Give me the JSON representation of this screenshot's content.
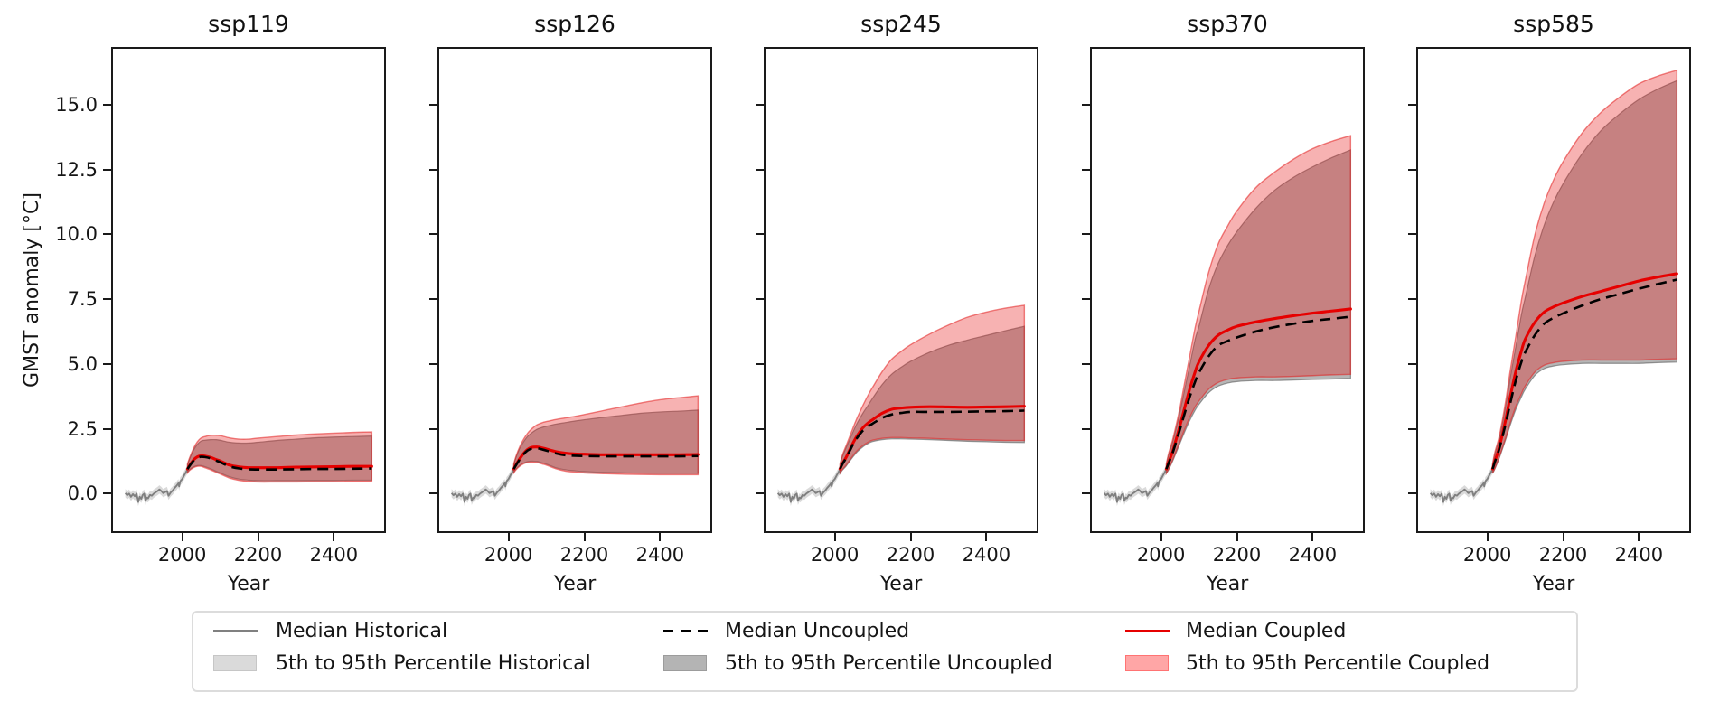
{
  "figure": {
    "ylabel": "GMST anomaly [°C]",
    "xlabel": "Year",
    "ytick_labels": [
      "0.0",
      "2.5",
      "5.0",
      "7.5",
      "10.0",
      "12.5",
      "15.0"
    ],
    "xtick_labels": [
      "2000",
      "2200",
      "2400"
    ]
  },
  "legend": {
    "items": [
      {
        "label": "Median Historical",
        "type": "line",
        "color": "#808080"
      },
      {
        "label": "5th to 95th Percentile Historical",
        "type": "patch",
        "fill": "#dadada",
        "edge": "#c6c6c6"
      },
      {
        "label": "Median Uncoupled",
        "type": "dashed-line",
        "color": "#000000"
      },
      {
        "label": "5th to 95th Percentile Uncoupled",
        "type": "patch",
        "fill": "#b4b4b4",
        "edge": "#9c9c9c"
      },
      {
        "label": "Median Coupled",
        "type": "line",
        "color": "#e60000"
      },
      {
        "label": "5th to 95th Percentile Coupled",
        "type": "patch",
        "fill": "#ffa6a6",
        "edge": "#ff7373"
      }
    ]
  },
  "chart_data": {
    "type": "line",
    "title": "",
    "xlabel": "Year",
    "ylabel": "GMST anomaly [°C]",
    "xlim": [
      1817.5,
      2532.5
    ],
    "ylim": [
      -1.45,
      17.15
    ],
    "xticks": [
      2000,
      2200,
      2400
    ],
    "yticks": [
      0,
      2.5,
      5,
      7.5,
      10,
      12.5,
      15
    ],
    "grid": false,
    "legend_position": "bottom",
    "colors": {
      "coupled_line": "#e60000",
      "coupled_fill": "rgba(230,20,20,0.33)",
      "coupled_edge": "rgba(225,30,30,0.55)",
      "uncoupled_line": "#000000",
      "uncoupled_fill": "rgba(110,110,110,0.50)",
      "uncoupled_edge": "rgba(90,90,90,0.60)",
      "historical_line": "#7f7f7f",
      "historical_fill": "rgba(150,150,150,0.35)"
    },
    "historical": {
      "years": [
        1850,
        1855,
        1860,
        1865,
        1870,
        1875,
        1880,
        1884,
        1888,
        1892,
        1896,
        1900,
        1903,
        1907,
        1910,
        1915,
        1920,
        1925,
        1930,
        1935,
        1940,
        1945,
        1950,
        1955,
        1960,
        1964,
        1970,
        1975,
        1980,
        1985,
        1990,
        1992,
        1995,
        2000,
        2005,
        2010,
        2014
      ],
      "median": [
        0.02,
        -0.06,
        0.0,
        -0.12,
        -0.02,
        -0.1,
        0.0,
        -0.32,
        -0.12,
        -0.2,
        -0.05,
        0.0,
        -0.28,
        -0.15,
        -0.18,
        -0.05,
        -0.08,
        0.0,
        0.05,
        0.1,
        0.16,
        0.1,
        0.02,
        0.06,
        0.1,
        -0.08,
        0.05,
        0.12,
        0.22,
        0.3,
        0.4,
        0.28,
        0.48,
        0.56,
        0.7,
        0.83,
        0.94
      ],
      "band_halfwidth": 0.16
    },
    "projection_years": [
      2014,
      2020,
      2030,
      2040,
      2050,
      2060,
      2075,
      2090,
      2100,
      2125,
      2150,
      2175,
      2200,
      2250,
      2300,
      2350,
      2400,
      2450,
      2500
    ],
    "panels": [
      {
        "title": "ssp119",
        "median_coupled": [
          0.95,
          1.1,
          1.3,
          1.42,
          1.46,
          1.45,
          1.4,
          1.31,
          1.26,
          1.1,
          1.03,
          1.0,
          1.0,
          1.0,
          1.02,
          1.03,
          1.04,
          1.05,
          1.05
        ],
        "median_uncoupled": [
          0.95,
          1.08,
          1.27,
          1.38,
          1.42,
          1.41,
          1.36,
          1.27,
          1.21,
          1.05,
          0.97,
          0.94,
          0.93,
          0.93,
          0.94,
          0.95,
          0.95,
          0.96,
          0.97
        ],
        "coupled_lower": [
          0.8,
          0.9,
          1.0,
          1.05,
          1.05,
          1.0,
          0.92,
          0.82,
          0.76,
          0.6,
          0.51,
          0.47,
          0.45,
          0.45,
          0.45,
          0.46,
          0.46,
          0.47,
          0.47
        ],
        "coupled_upper": [
          1.15,
          1.4,
          1.75,
          2.0,
          2.15,
          2.2,
          2.25,
          2.25,
          2.24,
          2.15,
          2.1,
          2.1,
          2.14,
          2.2,
          2.26,
          2.3,
          2.33,
          2.36,
          2.38
        ],
        "uncoupled_lower": [
          0.83,
          0.93,
          1.03,
          1.08,
          1.08,
          1.04,
          0.96,
          0.86,
          0.8,
          0.65,
          0.56,
          0.52,
          0.5,
          0.5,
          0.5,
          0.51,
          0.51,
          0.52,
          0.52
        ],
        "uncoupled_upper": [
          1.12,
          1.35,
          1.68,
          1.9,
          2.03,
          2.06,
          2.08,
          2.08,
          2.06,
          1.98,
          1.95,
          1.95,
          1.98,
          2.05,
          2.1,
          2.15,
          2.18,
          2.2,
          2.22
        ]
      },
      {
        "title": "ssp126",
        "median_coupled": [
          0.95,
          1.12,
          1.35,
          1.55,
          1.7,
          1.78,
          1.8,
          1.76,
          1.72,
          1.62,
          1.56,
          1.53,
          1.52,
          1.5,
          1.5,
          1.5,
          1.5,
          1.5,
          1.51
        ],
        "median_uncoupled": [
          0.95,
          1.1,
          1.32,
          1.52,
          1.66,
          1.73,
          1.75,
          1.7,
          1.66,
          1.55,
          1.48,
          1.46,
          1.45,
          1.44,
          1.44,
          1.44,
          1.44,
          1.44,
          1.45
        ],
        "coupled_lower": [
          0.8,
          0.92,
          1.06,
          1.15,
          1.2,
          1.21,
          1.2,
          1.14,
          1.1,
          0.96,
          0.87,
          0.83,
          0.8,
          0.77,
          0.75,
          0.74,
          0.73,
          0.73,
          0.73
        ],
        "coupled_upper": [
          1.15,
          1.45,
          1.82,
          2.1,
          2.32,
          2.48,
          2.65,
          2.74,
          2.78,
          2.86,
          2.92,
          2.98,
          3.05,
          3.2,
          3.35,
          3.5,
          3.62,
          3.7,
          3.77
        ],
        "uncoupled_lower": [
          0.83,
          0.95,
          1.09,
          1.18,
          1.23,
          1.25,
          1.24,
          1.18,
          1.14,
          1.0,
          0.92,
          0.88,
          0.85,
          0.82,
          0.8,
          0.79,
          0.78,
          0.78,
          0.78
        ],
        "uncoupled_upper": [
          1.12,
          1.4,
          1.75,
          2.0,
          2.2,
          2.33,
          2.48,
          2.56,
          2.6,
          2.68,
          2.74,
          2.8,
          2.85,
          2.94,
          3.02,
          3.1,
          3.15,
          3.18,
          3.22
        ]
      },
      {
        "title": "ssp245",
        "median_coupled": [
          0.95,
          1.15,
          1.4,
          1.7,
          2.0,
          2.25,
          2.55,
          2.75,
          2.85,
          3.1,
          3.25,
          3.3,
          3.33,
          3.35,
          3.34,
          3.33,
          3.34,
          3.35,
          3.37
        ],
        "median_uncoupled": [
          0.95,
          1.13,
          1.37,
          1.66,
          1.94,
          2.17,
          2.44,
          2.61,
          2.7,
          2.92,
          3.05,
          3.11,
          3.15,
          3.15,
          3.15,
          3.16,
          3.17,
          3.18,
          3.2
        ],
        "coupled_lower": [
          0.8,
          0.93,
          1.1,
          1.3,
          1.5,
          1.67,
          1.86,
          2.0,
          2.06,
          2.13,
          2.16,
          2.16,
          2.15,
          2.13,
          2.1,
          2.08,
          2.06,
          2.05,
          2.05
        ],
        "coupled_upper": [
          1.15,
          1.48,
          1.85,
          2.22,
          2.6,
          2.95,
          3.42,
          3.85,
          4.1,
          4.7,
          5.18,
          5.48,
          5.74,
          6.15,
          6.5,
          6.8,
          7.0,
          7.15,
          7.26
        ],
        "uncoupled_lower": [
          0.78,
          0.9,
          1.06,
          1.26,
          1.45,
          1.62,
          1.81,
          1.95,
          2.01,
          2.08,
          2.11,
          2.11,
          2.1,
          2.08,
          2.05,
          2.02,
          2.0,
          1.98,
          1.97
        ],
        "uncoupled_upper": [
          1.12,
          1.42,
          1.77,
          2.1,
          2.44,
          2.74,
          3.12,
          3.45,
          3.68,
          4.2,
          4.6,
          4.87,
          5.1,
          5.45,
          5.72,
          5.92,
          6.1,
          6.28,
          6.45
        ]
      },
      {
        "title": "ssp370",
        "median_coupled": [
          0.95,
          1.2,
          1.6,
          2.1,
          2.62,
          3.18,
          4.0,
          4.7,
          5.08,
          5.7,
          6.1,
          6.3,
          6.45,
          6.62,
          6.75,
          6.86,
          6.96,
          7.04,
          7.12
        ],
        "median_uncoupled": [
          0.95,
          1.17,
          1.54,
          2.0,
          2.48,
          2.98,
          3.7,
          4.32,
          4.66,
          5.28,
          5.7,
          5.88,
          6.02,
          6.25,
          6.42,
          6.55,
          6.66,
          6.74,
          6.82
        ],
        "coupled_lower": [
          0.8,
          0.95,
          1.28,
          1.65,
          2.02,
          2.4,
          2.92,
          3.35,
          3.57,
          4.02,
          4.28,
          4.4,
          4.46,
          4.5,
          4.5,
          4.52,
          4.55,
          4.58,
          4.6
        ],
        "coupled_upper": [
          1.15,
          1.55,
          2.05,
          2.65,
          3.32,
          4.1,
          5.25,
          6.4,
          7.02,
          8.5,
          9.6,
          10.3,
          10.9,
          11.8,
          12.4,
          12.9,
          13.3,
          13.58,
          13.8
        ],
        "uncoupled_lower": [
          0.78,
          0.92,
          1.23,
          1.58,
          1.94,
          2.3,
          2.8,
          3.22,
          3.44,
          3.88,
          4.14,
          4.26,
          4.32,
          4.36,
          4.36,
          4.38,
          4.4,
          4.42,
          4.44
        ],
        "uncoupled_upper": [
          1.12,
          1.48,
          1.95,
          2.52,
          3.15,
          3.85,
          4.9,
          5.95,
          6.45,
          7.85,
          8.85,
          9.55,
          10.1,
          11.0,
          11.7,
          12.2,
          12.6,
          12.95,
          13.25
        ]
      },
      {
        "title": "ssp585",
        "median_coupled": [
          0.95,
          1.25,
          1.7,
          2.3,
          2.95,
          3.7,
          4.7,
          5.5,
          5.95,
          6.6,
          7.0,
          7.2,
          7.35,
          7.6,
          7.8,
          8.0,
          8.2,
          8.35,
          8.48
        ],
        "median_uncoupled": [
          0.95,
          1.22,
          1.64,
          2.2,
          2.78,
          3.45,
          4.35,
          5.08,
          5.45,
          6.1,
          6.55,
          6.78,
          6.95,
          7.25,
          7.5,
          7.7,
          7.9,
          8.08,
          8.25
        ],
        "coupled_lower": [
          0.8,
          0.98,
          1.35,
          1.78,
          2.22,
          2.72,
          3.35,
          3.85,
          4.15,
          4.68,
          4.95,
          5.05,
          5.1,
          5.15,
          5.15,
          5.15,
          5.15,
          5.18,
          5.2
        ],
        "coupled_upper": [
          1.15,
          1.6,
          2.12,
          2.85,
          3.7,
          4.7,
          6.05,
          7.45,
          8.2,
          9.95,
          11.2,
          12.1,
          12.8,
          13.9,
          14.7,
          15.3,
          15.8,
          16.1,
          16.32
        ],
        "uncoupled_lower": [
          0.78,
          0.95,
          1.3,
          1.72,
          2.15,
          2.62,
          3.24,
          3.73,
          4.02,
          4.55,
          4.82,
          4.92,
          4.97,
          5.02,
          5.02,
          5.02,
          5.02,
          5.05,
          5.07
        ],
        "uncoupled_upper": [
          1.12,
          1.52,
          2.02,
          2.7,
          3.5,
          4.42,
          5.65,
          6.9,
          7.55,
          9.15,
          10.35,
          11.25,
          11.95,
          13.1,
          14.0,
          14.65,
          15.2,
          15.6,
          15.92
        ]
      }
    ]
  }
}
